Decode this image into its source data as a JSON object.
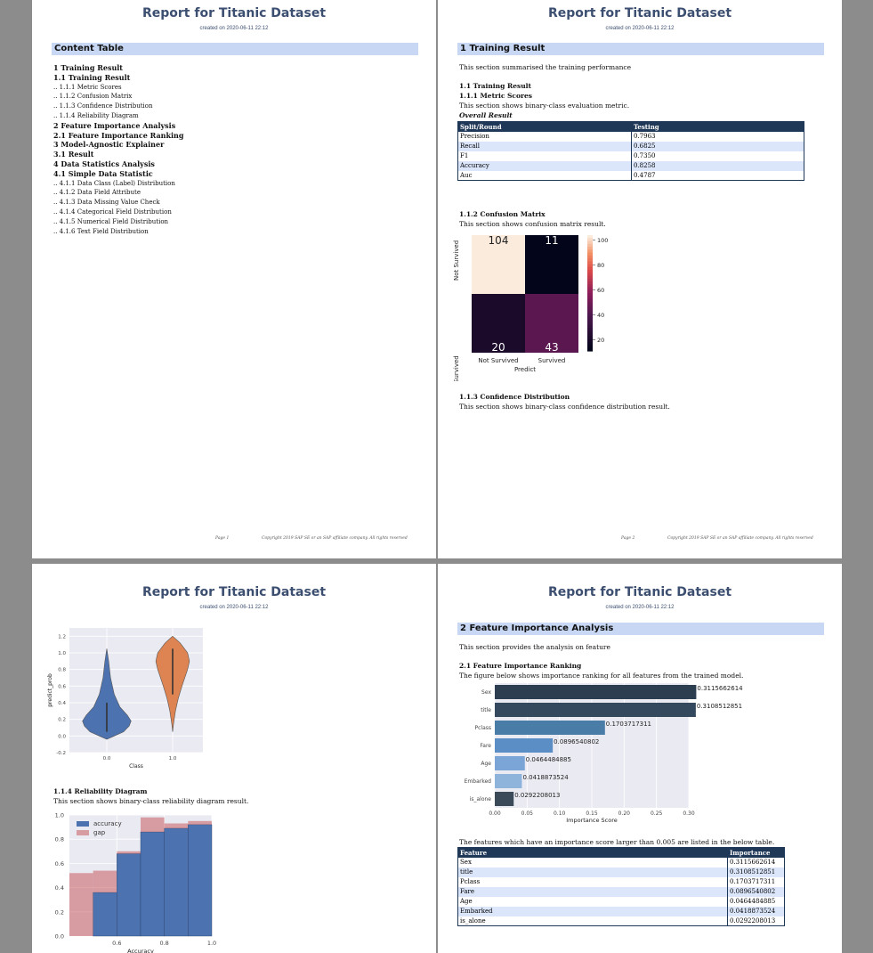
{
  "report": {
    "title": "Report for Titanic Dataset",
    "created": "created on 2020-06-11 22:12"
  },
  "page1": {
    "section_title": "Content Table",
    "toc": [
      {
        "level": 1,
        "text": "1   Training Result"
      },
      {
        "level": 2,
        "text": "1.1   Training Result"
      },
      {
        "level": 3,
        "text": ".. 1.1.1   Metric Scores"
      },
      {
        "level": 3,
        "text": ".. 1.1.2   Confusion Matrix"
      },
      {
        "level": 3,
        "text": ".. 1.1.3   Confidence Distribution"
      },
      {
        "level": 3,
        "text": ".. 1.1.4   Reliability Diagram"
      },
      {
        "level": 1,
        "text": "2   Feature Importance Analysis"
      },
      {
        "level": 2,
        "text": "2.1   Feature Importance Ranking"
      },
      {
        "level": 1,
        "text": "3   Model-Agnostic Explainer"
      },
      {
        "level": 2,
        "text": "3.1   Result"
      },
      {
        "level": 1,
        "text": "4   Data Statistics Analysis"
      },
      {
        "level": 2,
        "text": "4.1   Simple Data Statistic"
      },
      {
        "level": 3,
        "text": ".. 4.1.1   Data Class (Label) Distribution"
      },
      {
        "level": 3,
        "text": ".. 4.1.2   Data Field Attribute"
      },
      {
        "level": 3,
        "text": ".. 4.1.3   Data Missing Value Check"
      },
      {
        "level": 3,
        "text": ".. 4.1.4   Categorical Field Distribution"
      },
      {
        "level": 3,
        "text": ".. 4.1.5   Numerical Field Distribution"
      },
      {
        "level": 3,
        "text": ".. 4.1.6   Text Field Distribution"
      }
    ],
    "page_label": "Page 1"
  },
  "footer_copyright": "Copyright 2019 SAP SE or an SAP affiliate company. All rights reserved",
  "page2": {
    "section_title": "1   Training Result",
    "intro": "This section summarised the training performance",
    "sub_title": "1.1   Training Result",
    "metric_title": "1.1.1   Metric Scores",
    "metric_desc": "This section shows binary-class evaluation metric.",
    "overall_label": "Overall Result",
    "metric_table": {
      "headers": [
        "Split/Round",
        "Testing"
      ],
      "rows": [
        [
          "Precision",
          "0.7963"
        ],
        [
          "Recall",
          "0.6825"
        ],
        [
          "F1",
          "0.7350"
        ],
        [
          "Accuracy",
          "0.8258"
        ],
        [
          "Auc",
          "0.4787"
        ]
      ]
    },
    "cm_title": "1.1.2   Confusion Matrix",
    "cm_desc": "This section shows confusion matrix result.",
    "conf_title": "1.1.3   Confidence Distribution",
    "conf_desc": "This section shows binary-class confidence distribution result.",
    "page_label": "Page 2"
  },
  "page3": {
    "rel_title": "1.1.4   Reliability Diagram",
    "rel_desc": "This section shows binary-class reliability diagram result."
  },
  "page4": {
    "section_title": "2   Feature Importance Analysis",
    "intro": "This section provides the analysis on feature",
    "sub_title": "2.1   Feature Importance Ranking",
    "sub_desc": "The figure below shows importance ranking for all features from the trained model.",
    "table_note": "The features which have an importance score larger than 0.005 are listed in the below table.",
    "fi_table": {
      "headers": [
        "Feature",
        "Importance"
      ],
      "rows": [
        [
          "Sex",
          "0.3115662614"
        ],
        [
          "title",
          "0.3108512851"
        ],
        [
          "Pclass",
          "0.1703717311"
        ],
        [
          "Fare",
          "0.0896540802"
        ],
        [
          "Age",
          "0.0464484885"
        ],
        [
          "Embarked",
          "0.0418873524"
        ],
        [
          "is_alone",
          "0.0292208013"
        ]
      ]
    }
  },
  "chart_data": [
    {
      "type": "heatmap",
      "ylabel": "Not Survived / Survived",
      "xlabel": "Predict",
      "x_categories": [
        "Not Survived",
        "Survived"
      ],
      "y_categories": [
        "Not Survived",
        "Survived"
      ],
      "values": [
        [
          104,
          11
        ],
        [
          20,
          43
        ]
      ],
      "colorbar_ticks": [
        20,
        40,
        60,
        80,
        100
      ]
    },
    {
      "type": "violin",
      "xlabel": "Class",
      "ylabel": "predict_prob",
      "categories": [
        "0.0",
        "1.0"
      ],
      "yticks": [
        "-0.2",
        "0.0",
        "0.2",
        "0.4",
        "0.6",
        "0.8",
        "1.0",
        "1.2"
      ],
      "colors": [
        "#4c72b0",
        "#dd8452"
      ]
    },
    {
      "type": "bar",
      "xlabel": "Accuracy",
      "ylim": [
        0,
        1.0
      ],
      "yticks": [
        "0.0",
        "0.2",
        "0.4",
        "0.6",
        "0.8",
        "1.0"
      ],
      "xticks": [
        "0.6",
        "0.8",
        "1.0"
      ],
      "bin_centers": [
        0.55,
        0.65,
        0.75,
        0.85,
        0.95
      ],
      "series": [
        {
          "name": "accuracy",
          "values": [
            0.36,
            0.68,
            0.86,
            0.89,
            0.92
          ],
          "color": "#4c72b0"
        },
        {
          "name": "gap",
          "values": [
            0.18,
            0.02,
            0.12,
            0.04,
            0.03
          ],
          "color": "#c44e52"
        }
      ],
      "extra_gap_bins": [
        {
          "center": 0.45,
          "value": 0.52
        }
      ]
    },
    {
      "type": "bar",
      "orientation": "horizontal",
      "xlabel": "Importance Score",
      "xlim": [
        0,
        0.3
      ],
      "xticks": [
        "0.00",
        "0.05",
        "0.10",
        "0.15",
        "0.20",
        "0.25",
        "0.30"
      ],
      "categories": [
        "Sex",
        "title",
        "Pclass",
        "Fare",
        "Age",
        "Embarked",
        "is_alone"
      ],
      "values": [
        0.3115662614,
        0.3108512851,
        0.1703717311,
        0.0896540802,
        0.0464484885,
        0.0418873524,
        0.0292208013
      ],
      "labels": [
        "0.3115662614",
        "0.3108512851",
        "0.1703717311",
        "0.0896540802",
        "0.0464484885",
        "0.0418873524",
        "0.0292208013"
      ],
      "colors": [
        "#2c3e50",
        "#34495e",
        "#4a7ca8",
        "#5b8ec4",
        "#7ba5d6",
        "#8fb4dc",
        "#3b4a58"
      ]
    }
  ]
}
